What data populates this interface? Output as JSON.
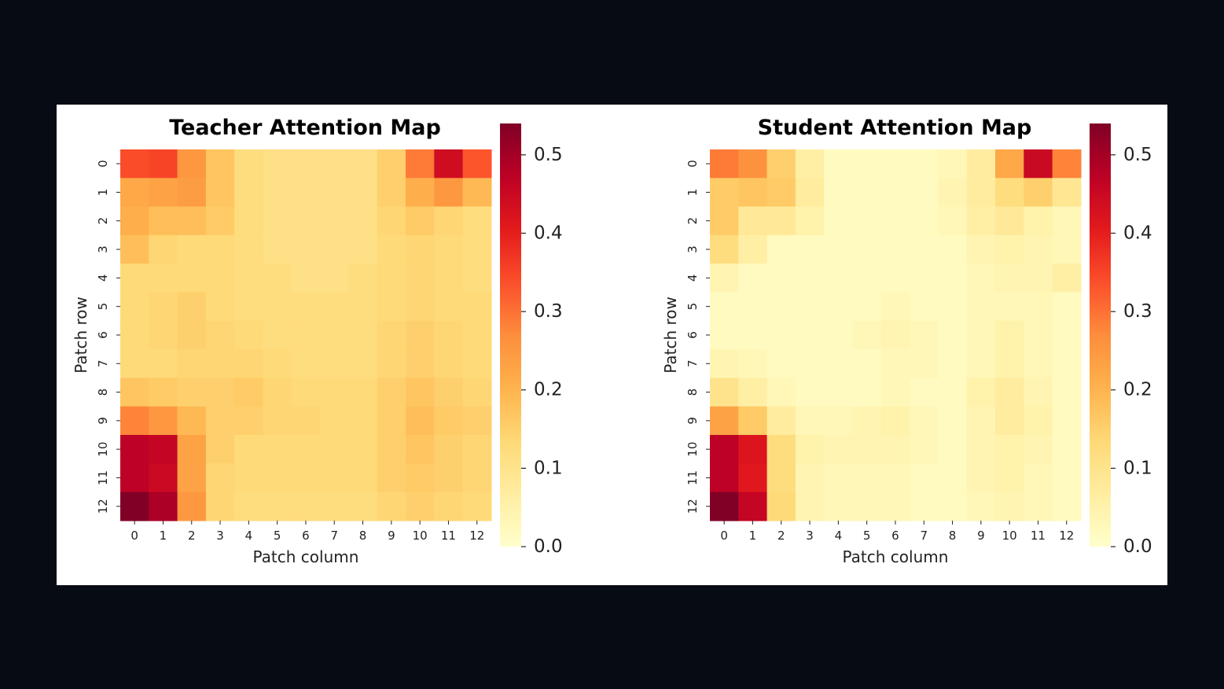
{
  "chart_data": [
    {
      "type": "heatmap",
      "title": "Teacher Attention Map",
      "xlabel": "Patch column",
      "ylabel": "Patch row",
      "x_ticks": [
        "0",
        "1",
        "2",
        "3",
        "4",
        "5",
        "6",
        "7",
        "8",
        "9",
        "10",
        "11",
        "12"
      ],
      "y_ticks": [
        "0",
        "1",
        "2",
        "3",
        "4",
        "5",
        "6",
        "7",
        "8",
        "9",
        "10",
        "11",
        "12"
      ],
      "colormap": "YlOrRd",
      "vmin": 0.0,
      "vmax": 0.54,
      "colorbar_ticks": [
        "0.0",
        "0.1",
        "0.2",
        "0.3",
        "0.4",
        "0.5"
      ],
      "values": [
        [
          0.34,
          0.35,
          0.25,
          0.17,
          0.12,
          0.11,
          0.11,
          0.11,
          0.11,
          0.15,
          0.29,
          0.44,
          0.33
        ],
        [
          0.22,
          0.23,
          0.24,
          0.17,
          0.12,
          0.11,
          0.11,
          0.11,
          0.11,
          0.15,
          0.21,
          0.25,
          0.19
        ],
        [
          0.21,
          0.18,
          0.18,
          0.16,
          0.12,
          0.11,
          0.11,
          0.11,
          0.11,
          0.14,
          0.16,
          0.14,
          0.12
        ],
        [
          0.18,
          0.14,
          0.13,
          0.13,
          0.12,
          0.11,
          0.11,
          0.11,
          0.11,
          0.13,
          0.14,
          0.13,
          0.12
        ],
        [
          0.13,
          0.13,
          0.13,
          0.13,
          0.12,
          0.12,
          0.11,
          0.11,
          0.12,
          0.13,
          0.14,
          0.13,
          0.12
        ],
        [
          0.13,
          0.14,
          0.15,
          0.13,
          0.12,
          0.12,
          0.12,
          0.12,
          0.12,
          0.13,
          0.14,
          0.13,
          0.13
        ],
        [
          0.13,
          0.14,
          0.15,
          0.14,
          0.13,
          0.12,
          0.12,
          0.12,
          0.12,
          0.14,
          0.15,
          0.14,
          0.13
        ],
        [
          0.13,
          0.13,
          0.14,
          0.14,
          0.14,
          0.13,
          0.12,
          0.12,
          0.12,
          0.14,
          0.15,
          0.14,
          0.13
        ],
        [
          0.17,
          0.16,
          0.15,
          0.15,
          0.16,
          0.14,
          0.13,
          0.13,
          0.13,
          0.15,
          0.17,
          0.15,
          0.14
        ],
        [
          0.28,
          0.25,
          0.19,
          0.15,
          0.15,
          0.14,
          0.14,
          0.13,
          0.13,
          0.15,
          0.18,
          0.16,
          0.15
        ],
        [
          0.47,
          0.46,
          0.23,
          0.15,
          0.13,
          0.13,
          0.13,
          0.13,
          0.13,
          0.15,
          0.17,
          0.15,
          0.14
        ],
        [
          0.47,
          0.45,
          0.23,
          0.14,
          0.13,
          0.13,
          0.13,
          0.13,
          0.13,
          0.15,
          0.16,
          0.15,
          0.14
        ],
        [
          0.54,
          0.49,
          0.25,
          0.14,
          0.12,
          0.12,
          0.12,
          0.12,
          0.12,
          0.14,
          0.15,
          0.14,
          0.13
        ]
      ]
    },
    {
      "type": "heatmap",
      "title": "Student Attention Map",
      "xlabel": "Patch column",
      "ylabel": "Patch row",
      "x_ticks": [
        "0",
        "1",
        "2",
        "3",
        "4",
        "5",
        "6",
        "7",
        "8",
        "9",
        "10",
        "11",
        "12"
      ],
      "y_ticks": [
        "0",
        "1",
        "2",
        "3",
        "4",
        "5",
        "6",
        "7",
        "8",
        "9",
        "10",
        "11",
        "12"
      ],
      "colormap": "YlOrRd",
      "vmin": 0.0,
      "vmax": 0.54,
      "colorbar_ticks": [
        "0.0",
        "0.1",
        "0.2",
        "0.3",
        "0.4",
        "0.5"
      ],
      "values": [
        [
          0.29,
          0.26,
          0.15,
          0.06,
          0.02,
          0.02,
          0.02,
          0.02,
          0.03,
          0.07,
          0.22,
          0.45,
          0.28
        ],
        [
          0.16,
          0.17,
          0.16,
          0.07,
          0.02,
          0.02,
          0.02,
          0.02,
          0.04,
          0.07,
          0.12,
          0.15,
          0.09
        ],
        [
          0.16,
          0.08,
          0.08,
          0.05,
          0.02,
          0.02,
          0.02,
          0.02,
          0.03,
          0.06,
          0.08,
          0.05,
          0.03
        ],
        [
          0.12,
          0.06,
          0.02,
          0.02,
          0.02,
          0.02,
          0.02,
          0.02,
          0.02,
          0.04,
          0.05,
          0.04,
          0.03
        ],
        [
          0.04,
          0.02,
          0.02,
          0.02,
          0.02,
          0.02,
          0.02,
          0.02,
          0.02,
          0.03,
          0.04,
          0.04,
          0.06
        ],
        [
          0.02,
          0.02,
          0.02,
          0.02,
          0.02,
          0.02,
          0.03,
          0.02,
          0.02,
          0.03,
          0.03,
          0.03,
          0.02
        ],
        [
          0.02,
          0.02,
          0.02,
          0.02,
          0.02,
          0.03,
          0.04,
          0.03,
          0.02,
          0.03,
          0.05,
          0.03,
          0.02
        ],
        [
          0.04,
          0.03,
          0.02,
          0.02,
          0.02,
          0.02,
          0.03,
          0.03,
          0.02,
          0.03,
          0.05,
          0.03,
          0.02
        ],
        [
          0.1,
          0.06,
          0.03,
          0.02,
          0.02,
          0.02,
          0.03,
          0.02,
          0.02,
          0.05,
          0.07,
          0.04,
          0.02
        ],
        [
          0.23,
          0.16,
          0.07,
          0.03,
          0.03,
          0.04,
          0.05,
          0.03,
          0.02,
          0.04,
          0.07,
          0.05,
          0.02
        ],
        [
          0.47,
          0.42,
          0.12,
          0.05,
          0.04,
          0.04,
          0.04,
          0.03,
          0.02,
          0.04,
          0.05,
          0.04,
          0.02
        ],
        [
          0.47,
          0.41,
          0.12,
          0.04,
          0.03,
          0.03,
          0.03,
          0.02,
          0.02,
          0.04,
          0.05,
          0.03,
          0.02
        ],
        [
          0.54,
          0.46,
          0.13,
          0.04,
          0.03,
          0.03,
          0.03,
          0.02,
          0.02,
          0.03,
          0.04,
          0.03,
          0.02
        ]
      ]
    }
  ]
}
